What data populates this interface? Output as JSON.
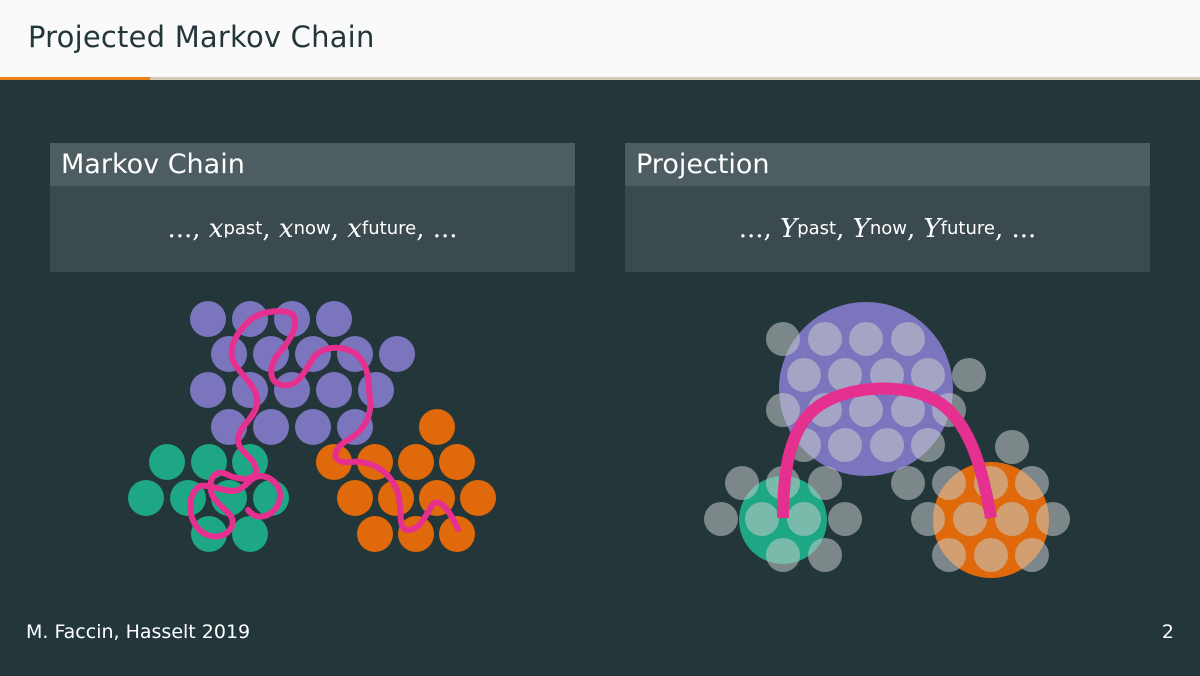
{
  "header": {
    "title": "Projected Markov Chain"
  },
  "progress": {
    "fraction": 0.125
  },
  "blocks": {
    "left": {
      "title": "Markov Chain",
      "formula": {
        "leading": "...,",
        "var": "x",
        "sub1": "past",
        "sub2": "now",
        "sub3": "future",
        "trailing": ", ..."
      }
    },
    "right": {
      "title": "Projection",
      "formula": {
        "leading": "...,",
        "var": "Y",
        "sub1": "past",
        "sub2": "now",
        "sub3": "future",
        "trailing": ", ..."
      }
    }
  },
  "footer": {
    "text": "M. Faccin, Hasselt 2019",
    "page": "2"
  },
  "colors": {
    "background": "#23373b",
    "purple": "#7b75be",
    "green": "#1ea785",
    "orange": "#e06a0b",
    "path": "#e6308f",
    "gray": "#9aa2a3"
  }
}
